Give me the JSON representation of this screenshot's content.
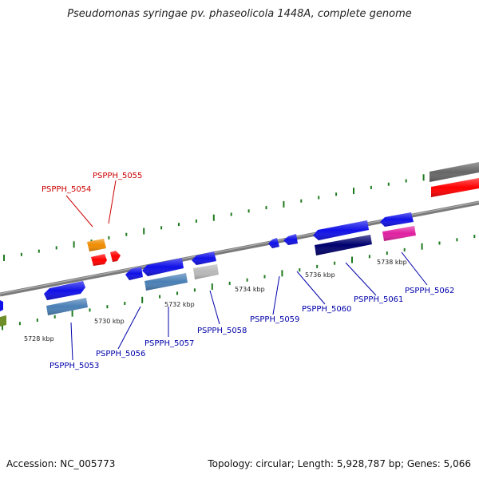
{
  "title": "Pseudomonas syringae pv. phaseolicola 1448A, complete genome",
  "footer": {
    "accession": "Accession: NC_005773",
    "summary": "Topology: circular; Length: 5,928,787 bp; Genes: 5,066"
  },
  "colors": {
    "backbone": "#7a7a7a",
    "tick": "#1e7a1e",
    "label_forward": "#cc0000",
    "label_reverse": "#0000aa"
  },
  "ticks": [
    {
      "kbp": 5728,
      "label": "5728 kbp"
    },
    {
      "kbp": 5730,
      "label": "5730 kbp"
    },
    {
      "kbp": 5732,
      "label": "5732 kbp"
    },
    {
      "kbp": 5734,
      "label": "5734 kbp"
    },
    {
      "kbp": 5736,
      "label": "5736 kbp"
    },
    {
      "kbp": 5738,
      "label": "5738 kbp"
    }
  ],
  "genes": [
    {
      "name": "PSPPH_5053",
      "strand": "reverse",
      "color": "#1010e8",
      "sub_color": "#4a7fb5"
    },
    {
      "name": "PSPPH_5054",
      "strand": "forward",
      "color": "#f08c00",
      "sub_color": "#ff0000"
    },
    {
      "name": "PSPPH_5055",
      "strand": "forward",
      "color": "#ff0000",
      "sub_color": ""
    },
    {
      "name": "PSPPH_5056",
      "strand": "reverse",
      "color": "#1010e8",
      "sub_color": ""
    },
    {
      "name": "PSPPH_5057",
      "strand": "reverse",
      "color": "#1010e8",
      "sub_color": "#4a7fb5"
    },
    {
      "name": "PSPPH_5058",
      "strand": "reverse",
      "color": "#1010e8",
      "sub_color": "#b8b8b8"
    },
    {
      "name": "PSPPH_5059",
      "strand": "reverse",
      "color": "#1010e8",
      "sub_color": ""
    },
    {
      "name": "PSPPH_5060",
      "strand": "reverse",
      "color": "#1010e8",
      "sub_color": ""
    },
    {
      "name": "PSPPH_5061",
      "strand": "reverse",
      "color": "#1010e8",
      "sub_color": "#00006e"
    },
    {
      "name": "PSPPH_5062",
      "strand": "reverse",
      "color": "#1010e8",
      "sub_color": "#e020a0"
    }
  ]
}
